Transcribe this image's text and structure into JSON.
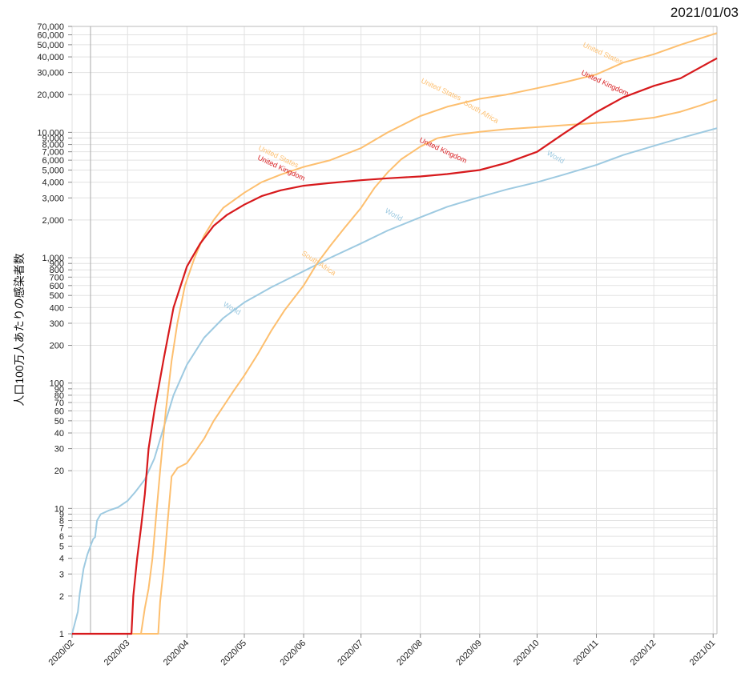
{
  "header": {
    "date": "2021/01/03"
  },
  "chart_data": {
    "type": "line",
    "ylabel": "人口100万人あたりの感染者数",
    "xlabel": "",
    "yscale": "log",
    "ylim": [
      1,
      70000
    ],
    "xlim": [
      "2020-02-01",
      "2021-01-03"
    ],
    "grid": true,
    "y_tick_labels": [
      "1",
      "2",
      "3",
      "4",
      "5",
      "6",
      "7",
      "8",
      "9",
      "10",
      "20",
      "30",
      "40",
      "50",
      "60",
      "70",
      "80",
      "90",
      "100",
      "200",
      "300",
      "400",
      "500",
      "600",
      "700",
      "800",
      "900",
      "1,000",
      "2,000",
      "3,000",
      "4,000",
      "5,000",
      "6,000",
      "7,000",
      "8,000",
      "9,000",
      "10,000",
      "20,000",
      "30,000",
      "40,000",
      "50,000",
      "60,000",
      "70,000"
    ],
    "x_tick_labels": [
      "2020/02",
      "2020/03",
      "2020/04",
      "2020/05",
      "2020/06",
      "2020/07",
      "2020/08",
      "2020/09",
      "2020/10",
      "2020/11",
      "2020/12",
      "2021/01"
    ],
    "series": [
      {
        "name": "World",
        "color": "#9ecae1",
        "labels": [
          "World",
          "World",
          "World"
        ],
        "points": [
          [
            "2020-02-01",
            1
          ],
          [
            "2020-02-04",
            1.5
          ],
          [
            "2020-02-05",
            2.1
          ],
          [
            "2020-02-07",
            3.3
          ],
          [
            "2020-02-09",
            4.3
          ],
          [
            "2020-02-11",
            5.2
          ],
          [
            "2020-02-12",
            5.7
          ],
          [
            "2020-02-13",
            5.9
          ],
          [
            "2020-02-14",
            8
          ],
          [
            "2020-02-16",
            9
          ],
          [
            "2020-02-20",
            9.6
          ],
          [
            "2020-02-25",
            10.2
          ],
          [
            "2020-03-01",
            11.5
          ],
          [
            "2020-03-05",
            13.5
          ],
          [
            "2020-03-10",
            17
          ],
          [
            "2020-03-15",
            25
          ],
          [
            "2020-03-20",
            45
          ],
          [
            "2020-03-25",
            80
          ],
          [
            "2020-04-01",
            140
          ],
          [
            "2020-04-10",
            230
          ],
          [
            "2020-04-20",
            330
          ],
          [
            "2020-05-01",
            440
          ],
          [
            "2020-05-15",
            580
          ],
          [
            "2020-06-01",
            780
          ],
          [
            "2020-06-15",
            1000
          ],
          [
            "2020-07-01",
            1300
          ],
          [
            "2020-07-15",
            1650
          ],
          [
            "2020-08-01",
            2100
          ],
          [
            "2020-08-15",
            2550
          ],
          [
            "2020-09-01",
            3050
          ],
          [
            "2020-09-15",
            3500
          ],
          [
            "2020-10-01",
            4000
          ],
          [
            "2020-10-15",
            4600
          ],
          [
            "2020-11-01",
            5500
          ],
          [
            "2020-11-15",
            6600
          ],
          [
            "2020-12-01",
            7800
          ],
          [
            "2020-12-15",
            9000
          ],
          [
            "2021-01-03",
            10800
          ]
        ]
      },
      {
        "name": "South Africa",
        "color": "#fdbf6f",
        "labels": [
          "South Africa",
          "South Africa"
        ],
        "points": [
          [
            "2020-02-01",
            1
          ],
          [
            "2020-03-17",
            1
          ],
          [
            "2020-03-18",
            1.8
          ],
          [
            "2020-03-20",
            3.5
          ],
          [
            "2020-03-22",
            8
          ],
          [
            "2020-03-24",
            18
          ],
          [
            "2020-03-27",
            21
          ],
          [
            "2020-04-01",
            23
          ],
          [
            "2020-04-05",
            28
          ],
          [
            "2020-04-10",
            36
          ],
          [
            "2020-04-15",
            50
          ],
          [
            "2020-04-20",
            65
          ],
          [
            "2020-04-25",
            85
          ],
          [
            "2020-05-01",
            115
          ],
          [
            "2020-05-08",
            170
          ],
          [
            "2020-05-15",
            260
          ],
          [
            "2020-05-22",
            380
          ],
          [
            "2020-06-01",
            600
          ],
          [
            "2020-06-08",
            900
          ],
          [
            "2020-06-15",
            1250
          ],
          [
            "2020-06-22",
            1700
          ],
          [
            "2020-07-01",
            2500
          ],
          [
            "2020-07-08",
            3600
          ],
          [
            "2020-07-15",
            4800
          ],
          [
            "2020-07-22",
            6100
          ],
          [
            "2020-08-01",
            7700
          ],
          [
            "2020-08-10",
            9000
          ],
          [
            "2020-08-20",
            9600
          ],
          [
            "2020-09-01",
            10100
          ],
          [
            "2020-09-15",
            10600
          ],
          [
            "2020-10-01",
            11000
          ],
          [
            "2020-10-15",
            11400
          ],
          [
            "2020-11-01",
            11900
          ],
          [
            "2020-11-15",
            12300
          ],
          [
            "2020-12-01",
            13100
          ],
          [
            "2020-12-15",
            14600
          ],
          [
            "2020-12-25",
            16300
          ],
          [
            "2021-01-03",
            18200
          ]
        ]
      },
      {
        "name": "United States",
        "color": "#fdbf6f",
        "labels": [
          "United States",
          "United States",
          "United States"
        ],
        "points": [
          [
            "2020-02-01",
            1
          ],
          [
            "2020-03-08",
            1
          ],
          [
            "2020-03-10",
            1.6
          ],
          [
            "2020-03-12",
            2.3
          ],
          [
            "2020-03-14",
            4
          ],
          [
            "2020-03-16",
            9
          ],
          [
            "2020-03-18",
            20
          ],
          [
            "2020-03-21",
            60
          ],
          [
            "2020-03-24",
            150
          ],
          [
            "2020-03-27",
            300
          ],
          [
            "2020-03-31",
            600
          ],
          [
            "2020-04-05",
            1000
          ],
          [
            "2020-04-10",
            1500
          ],
          [
            "2020-04-15",
            2000
          ],
          [
            "2020-04-20",
            2500
          ],
          [
            "2020-05-01",
            3300
          ],
          [
            "2020-05-10",
            4000
          ],
          [
            "2020-05-20",
            4600
          ],
          [
            "2020-06-01",
            5300
          ],
          [
            "2020-06-15",
            6000
          ],
          [
            "2020-07-01",
            7500
          ],
          [
            "2020-07-15",
            10000
          ],
          [
            "2020-08-01",
            13500
          ],
          [
            "2020-08-15",
            16000
          ],
          [
            "2020-09-01",
            18500
          ],
          [
            "2020-09-15",
            20000
          ],
          [
            "2020-10-01",
            22500
          ],
          [
            "2020-10-15",
            25000
          ],
          [
            "2020-11-01",
            29000
          ],
          [
            "2020-11-15",
            36000
          ],
          [
            "2020-12-01",
            42000
          ],
          [
            "2020-12-15",
            50000
          ],
          [
            "2021-01-03",
            62000
          ]
        ]
      },
      {
        "name": "United Kingdom",
        "color": "#d7191c",
        "labels": [
          "United Kingdom",
          "United Kingdom",
          "United Kingdom"
        ],
        "points": [
          [
            "2020-02-01",
            1
          ],
          [
            "2020-03-03",
            1
          ],
          [
            "2020-03-04",
            2
          ],
          [
            "2020-03-06",
            4
          ],
          [
            "2020-03-08",
            7
          ],
          [
            "2020-03-10",
            13
          ],
          [
            "2020-03-12",
            30
          ],
          [
            "2020-03-15",
            60
          ],
          [
            "2020-03-20",
            160
          ],
          [
            "2020-03-25",
            400
          ],
          [
            "2020-04-01",
            850
          ],
          [
            "2020-04-08",
            1300
          ],
          [
            "2020-04-15",
            1800
          ],
          [
            "2020-04-22",
            2200
          ],
          [
            "2020-05-01",
            2650
          ],
          [
            "2020-05-10",
            3100
          ],
          [
            "2020-05-20",
            3450
          ],
          [
            "2020-06-01",
            3750
          ],
          [
            "2020-06-15",
            3950
          ],
          [
            "2020-07-01",
            4150
          ],
          [
            "2020-07-15",
            4300
          ],
          [
            "2020-08-01",
            4450
          ],
          [
            "2020-08-15",
            4650
          ],
          [
            "2020-09-01",
            5000
          ],
          [
            "2020-09-15",
            5700
          ],
          [
            "2020-10-01",
            7000
          ],
          [
            "2020-10-15",
            9800
          ],
          [
            "2020-11-01",
            14500
          ],
          [
            "2020-11-15",
            19000
          ],
          [
            "2020-12-01",
            23500
          ],
          [
            "2020-12-15",
            27000
          ],
          [
            "2021-01-03",
            39000
          ]
        ]
      }
    ]
  }
}
